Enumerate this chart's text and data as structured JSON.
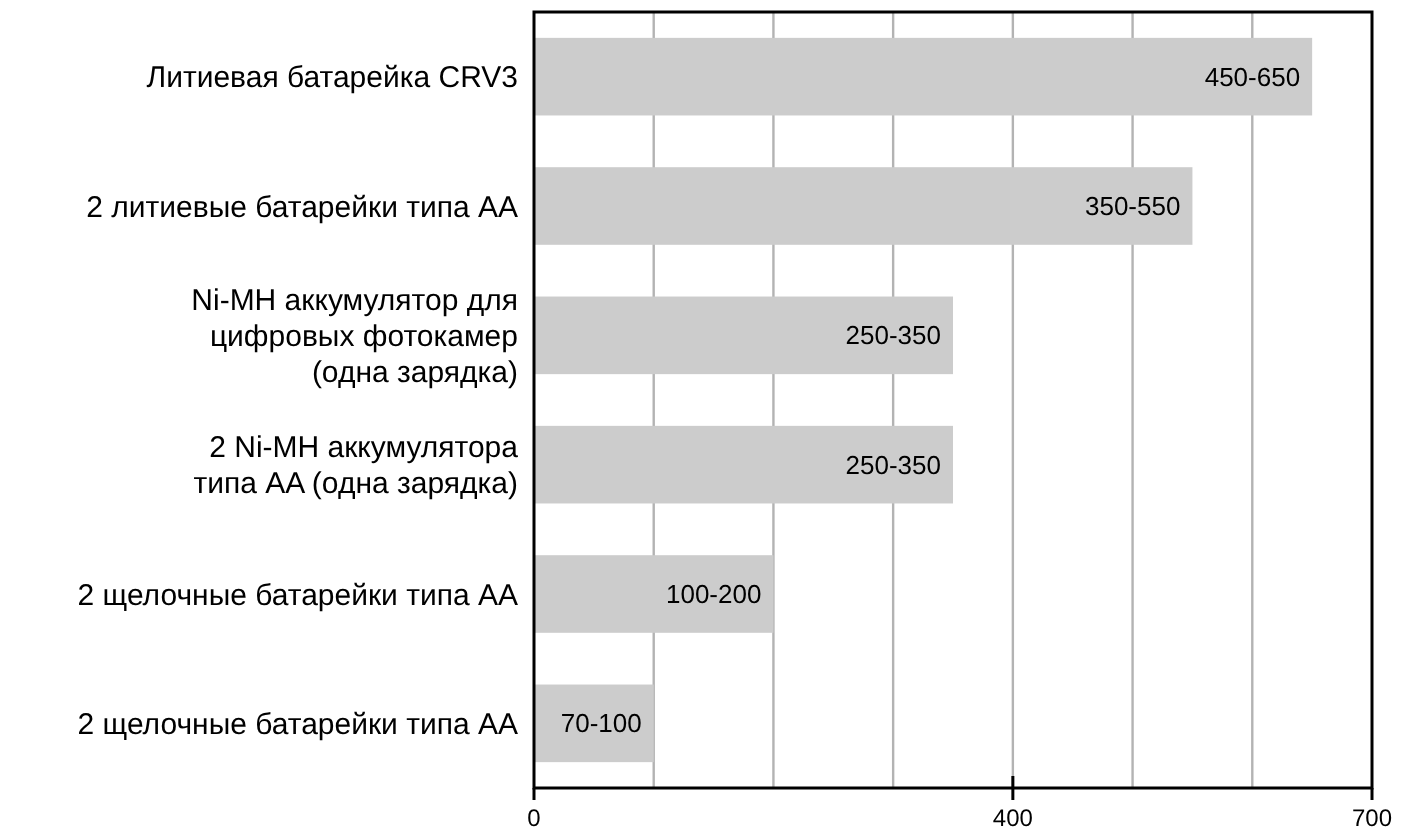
{
  "chart_data": {
    "type": "bar",
    "orientation": "horizontal",
    "categories": [
      "Литиевая батарейка CRV3",
      "2 литиевые батарейки типа AA",
      "Ni-MH аккумулятор для цифровых фотокамер (одна зарядка)",
      "2 Ni-MH аккумулятора типа AA (одна зарядка)",
      "2 щелочные батарейки типа AA",
      "2 щелочные батарейки типа AA"
    ],
    "values": [
      650,
      550,
      350,
      350,
      200,
      100
    ],
    "value_labels": [
      "450-650",
      "350-550",
      "250-350",
      "250-350",
      "100-200",
      "70-100"
    ],
    "color": "#cccccc",
    "xlim": [
      0,
      700
    ],
    "xticks": [
      0,
      {
        "value": 100,
        "label": null
      },
      {
        "value": 200,
        "label": null
      },
      {
        "value": 300,
        "label": null
      },
      400,
      {
        "value": 500,
        "label": null
      },
      {
        "value": 600,
        "label": null
      },
      700
    ],
    "grid": "x"
  }
}
